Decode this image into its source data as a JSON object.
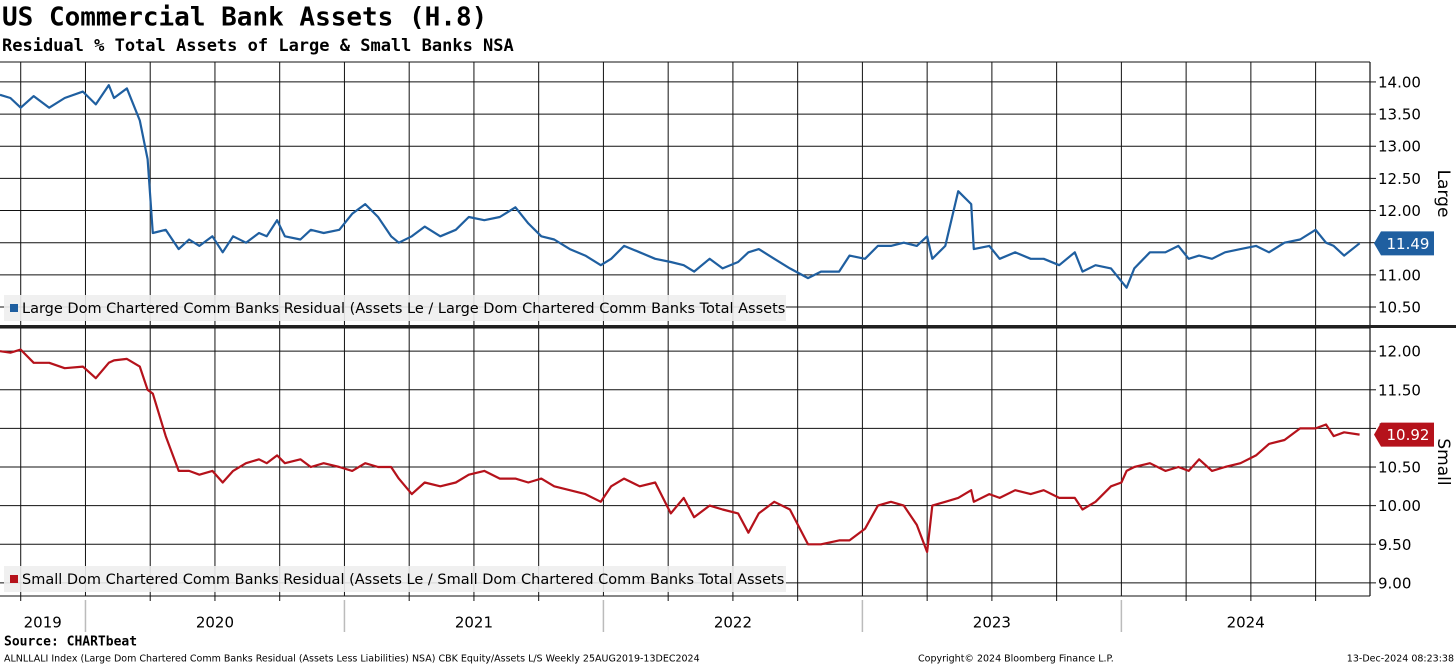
{
  "chart_data": [
    {
      "type": "line",
      "title": "US Commercial Bank Assets (H.8)",
      "subtitle": "Residual % Total Assets of Large & Small Banks NSA",
      "axis_label": "Large",
      "x": [
        2019.67,
        2019.71,
        2019.75,
        2019.8,
        2019.86,
        2019.92,
        2019.99,
        2020.04,
        2020.09,
        2020.11,
        2020.16,
        2020.21,
        2020.24,
        2020.26,
        2020.31,
        2020.36,
        2020.4,
        2020.44,
        2020.49,
        2020.53,
        2020.57,
        2020.62,
        2020.67,
        2020.7,
        2020.74,
        2020.77,
        2020.83,
        2020.87,
        2020.92,
        2020.98,
        2021.03,
        2021.08,
        2021.13,
        2021.18,
        2021.21,
        2021.26,
        2021.31,
        2021.37,
        2021.43,
        2021.48,
        2021.54,
        2021.6,
        2021.66,
        2021.71,
        2021.76,
        2021.81,
        2021.87,
        2021.93,
        2021.99,
        2022.03,
        2022.08,
        2022.14,
        2022.2,
        2022.26,
        2022.31,
        2022.35,
        2022.41,
        2022.46,
        2022.52,
        2022.56,
        2022.6,
        2022.66,
        2022.72,
        2022.79,
        2022.84,
        2022.91,
        2022.95,
        2023.01,
        2023.06,
        2023.11,
        2023.16,
        2023.21,
        2023.25,
        2023.27,
        2023.32,
        2023.37,
        2023.42,
        2023.43,
        2023.49,
        2023.53,
        2023.59,
        2023.65,
        2023.7,
        2023.76,
        2023.82,
        2023.85,
        2023.9,
        2023.96,
        2024,
        2024.02,
        2024.05,
        2024.11,
        2024.17,
        2024.22,
        2024.26,
        2024.3,
        2024.35,
        2024.4,
        2024.46,
        2024.52,
        2024.57,
        2024.63,
        2024.69,
        2024.75,
        2024.79,
        2024.82,
        2024.86,
        2024.92
      ],
      "xlim": [
        2019.67,
        2024.96
      ],
      "series": [
        {
          "name": "Large Dom Chartered Comm Banks Residual (Assets Le / Large Dom Chartered Comm Banks Total Assets",
          "color": "#1f5fa0",
          "values": [
            13.8,
            13.75,
            13.6,
            13.78,
            13.6,
            13.75,
            13.85,
            13.65,
            13.95,
            13.75,
            13.9,
            13.4,
            12.8,
            11.65,
            11.7,
            11.4,
            11.55,
            11.45,
            11.6,
            11.35,
            11.6,
            11.5,
            11.65,
            11.6,
            11.85,
            11.6,
            11.55,
            11.7,
            11.65,
            11.7,
            11.95,
            12.1,
            11.9,
            11.6,
            11.5,
            11.6,
            11.75,
            11.6,
            11.7,
            11.9,
            11.85,
            11.9,
            12.05,
            11.8,
            11.6,
            11.55,
            11.4,
            11.3,
            11.15,
            11.25,
            11.45,
            11.35,
            11.25,
            11.2,
            11.15,
            11.05,
            11.25,
            11.1,
            11.2,
            11.35,
            11.4,
            11.25,
            11.1,
            10.95,
            11.05,
            11.05,
            11.3,
            11.25,
            11.45,
            11.45,
            11.5,
            11.45,
            11.6,
            11.25,
            11.45,
            12.3,
            12.1,
            11.4,
            11.45,
            11.25,
            11.35,
            11.25,
            11.25,
            11.15,
            11.35,
            11.05,
            11.15,
            11.1,
            10.9,
            10.8,
            11.1,
            11.35,
            11.35,
            11.45,
            11.25,
            11.3,
            11.25,
            11.35,
            11.4,
            11.45,
            11.35,
            11.5,
            11.55,
            11.7,
            11.5,
            11.45,
            11.3,
            11.49
          ]
        }
      ],
      "ylim": [
        10.22,
        14.31
      ],
      "yticks": [
        {
          "value": 10.5,
          "label": "10.50"
        },
        {
          "value": 11,
          "label": "11.00"
        },
        {
          "value": 11.5,
          "label": "11.50"
        },
        {
          "value": 12,
          "label": "12.00"
        },
        {
          "value": 12.5,
          "label": "12.50"
        },
        {
          "value": 13,
          "label": "13.00"
        },
        {
          "value": 13.5,
          "label": "13.50"
        },
        {
          "value": 14,
          "label": "14.00"
        }
      ],
      "grid": true,
      "y_axis_side": "right",
      "legend": "bottom-left"
    },
    {
      "type": "line",
      "axis_label": "Small",
      "x": [
        2019.67,
        2019.71,
        2019.75,
        2019.8,
        2019.86,
        2019.92,
        2019.99,
        2020.04,
        2020.09,
        2020.11,
        2020.16,
        2020.21,
        2020.24,
        2020.26,
        2020.31,
        2020.36,
        2020.4,
        2020.44,
        2020.49,
        2020.53,
        2020.57,
        2020.62,
        2020.67,
        2020.7,
        2020.74,
        2020.77,
        2020.83,
        2020.87,
        2020.92,
        2020.98,
        2021.03,
        2021.08,
        2021.13,
        2021.18,
        2021.21,
        2021.26,
        2021.31,
        2021.37,
        2021.43,
        2021.48,
        2021.54,
        2021.6,
        2021.66,
        2021.71,
        2021.76,
        2021.81,
        2021.87,
        2021.93,
        2021.99,
        2022.03,
        2022.08,
        2022.14,
        2022.2,
        2022.26,
        2022.31,
        2022.35,
        2022.41,
        2022.46,
        2022.52,
        2022.56,
        2022.6,
        2022.66,
        2022.72,
        2022.79,
        2022.84,
        2022.91,
        2022.95,
        2023.01,
        2023.06,
        2023.11,
        2023.16,
        2023.21,
        2023.25,
        2023.27,
        2023.32,
        2023.37,
        2023.42,
        2023.43,
        2023.49,
        2023.53,
        2023.59,
        2023.65,
        2023.7,
        2023.76,
        2023.82,
        2023.85,
        2023.9,
        2023.96,
        2024,
        2024.02,
        2024.05,
        2024.11,
        2024.17,
        2024.22,
        2024.26,
        2024.3,
        2024.35,
        2024.4,
        2024.46,
        2024.52,
        2024.57,
        2024.63,
        2024.69,
        2024.75,
        2024.79,
        2024.82,
        2024.86,
        2024.92
      ],
      "xlim": [
        2019.67,
        2024.96
      ],
      "xticks": [
        {
          "value": 2019,
          "label": "2019"
        },
        {
          "value": 2020,
          "label": "2020"
        },
        {
          "value": 2021,
          "label": "2021"
        },
        {
          "value": 2022,
          "label": "2022"
        },
        {
          "value": 2023,
          "label": "2023"
        },
        {
          "value": 2024,
          "label": "2024"
        }
      ],
      "series": [
        {
          "name": "Small Dom Chartered Comm Banks Residual (Assets Le / Small Dom Chartered Comm Banks Total Assets",
          "color": "#b5121b",
          "values": [
            12.0,
            11.98,
            12.02,
            11.85,
            11.85,
            11.78,
            11.8,
            11.65,
            11.85,
            11.88,
            11.9,
            11.8,
            11.5,
            11.45,
            10.9,
            10.45,
            10.45,
            10.4,
            10.45,
            10.3,
            10.45,
            10.55,
            10.6,
            10.55,
            10.65,
            10.55,
            10.6,
            10.5,
            10.55,
            10.5,
            10.45,
            10.55,
            10.5,
            10.5,
            10.35,
            10.15,
            10.3,
            10.25,
            10.3,
            10.4,
            10.45,
            10.35,
            10.35,
            10.3,
            10.35,
            10.25,
            10.2,
            10.15,
            10.05,
            10.25,
            10.35,
            10.25,
            10.3,
            9.9,
            10.1,
            9.85,
            10.0,
            9.95,
            9.9,
            9.65,
            9.9,
            10.05,
            9.95,
            9.5,
            9.5,
            9.55,
            9.55,
            9.7,
            10.0,
            10.05,
            10.0,
            9.75,
            9.4,
            10.0,
            10.05,
            10.1,
            10.2,
            10.05,
            10.15,
            10.1,
            10.2,
            10.15,
            10.2,
            10.1,
            10.1,
            9.95,
            10.05,
            10.25,
            10.3,
            10.45,
            10.5,
            10.55,
            10.45,
            10.5,
            10.45,
            10.6,
            10.45,
            10.5,
            10.55,
            10.65,
            10.8,
            10.85,
            11.0,
            11.0,
            11.05,
            10.9,
            10.95,
            10.92
          ]
        }
      ],
      "ylim": [
        8.83,
        12.3
      ],
      "yticks": [
        {
          "value": 9,
          "label": "9.00"
        },
        {
          "value": 9.5,
          "label": "9.50"
        },
        {
          "value": 10,
          "label": "10.00"
        },
        {
          "value": 10.5,
          "label": "10.50"
        },
        {
          "value": 11,
          "label": "11.00"
        },
        {
          "value": 11.5,
          "label": "11.50"
        },
        {
          "value": 12,
          "label": "12.00"
        }
      ],
      "grid": true,
      "y_axis_side": "right",
      "legend": "bottom-left"
    }
  ],
  "footer": {
    "source": "Source: CHARTbeat",
    "note": "ALNLLALI Index (Large Dom Chartered Comm Banks Residual (Assets Less Liabilities) NSA) CBK Equity/Assets L/S  Weekly 25AUG2019-13DEC2024",
    "copyright": "Copyright© 2024 Bloomberg Finance L.P.",
    "timestamp": "13-Dec-2024 08:23:38"
  }
}
